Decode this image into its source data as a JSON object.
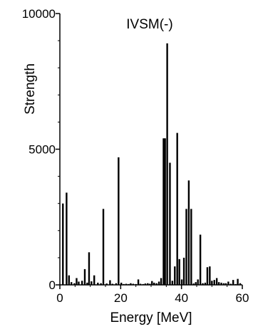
{
  "chart_data": {
    "type": "bar",
    "title": "IVSM(-)",
    "xlabel": "Energy [MeV]",
    "ylabel": "Strength",
    "xlim": [
      0,
      60
    ],
    "ylim": [
      0,
      10000
    ],
    "x_ticks": [
      0,
      20,
      40,
      60
    ],
    "y_ticks": [
      0,
      5000,
      10000
    ],
    "x_tick_labels": [
      "0",
      "20",
      "40",
      "60"
    ],
    "y_tick_labels": [
      "0",
      "5000",
      "10000"
    ],
    "grid": false,
    "legend": "none",
    "series": [
      {
        "x": [
          1.0,
          2.2,
          3.0,
          3.8,
          4.8,
          5.5,
          6.2,
          7.3,
          8.2,
          9.0,
          9.6,
          10.4,
          11.3,
          12.5,
          13.5,
          14.3,
          15.4,
          16.5,
          17.3,
          18.5,
          19.3,
          20.2,
          21.0,
          21.8,
          22.6,
          23.3,
          24.1,
          25.0,
          25.8,
          26.5,
          27.4,
          28.1,
          28.9,
          29.6,
          30.3,
          31.0,
          31.8,
          32.6,
          33.3,
          34.1,
          34.6,
          35.3,
          36.2,
          37.0,
          37.8,
          38.6,
          39.3,
          40.1,
          40.8,
          41.6,
          42.4,
          43.2,
          44.0,
          44.7,
          45.4,
          46.2,
          47.0,
          47.8,
          48.5,
          49.3,
          50.0,
          50.8,
          51.6,
          52.3,
          53.1,
          53.9,
          54.6,
          55.4,
          56.2,
          57.0,
          57.8,
          58.5,
          59.3
        ],
        "values": [
          3000,
          3400,
          350,
          100,
          60,
          250,
          120,
          150,
          580,
          80,
          1200,
          130,
          350,
          80,
          60,
          2800,
          50,
          170,
          40,
          60,
          4700,
          80,
          30,
          40,
          30,
          60,
          40,
          30,
          200,
          40,
          30,
          50,
          60,
          40,
          140,
          80,
          60,
          120,
          250,
          5400,
          5400,
          8900,
          4500,
          150,
          680,
          5600,
          950,
          200,
          1000,
          2800,
          3850,
          2800,
          50,
          100,
          200,
          1850,
          60,
          80,
          650,
          680,
          150,
          180,
          250,
          100,
          80,
          60,
          60,
          120,
          40,
          180,
          30,
          220,
          60
        ],
        "color": "#000000"
      }
    ]
  }
}
